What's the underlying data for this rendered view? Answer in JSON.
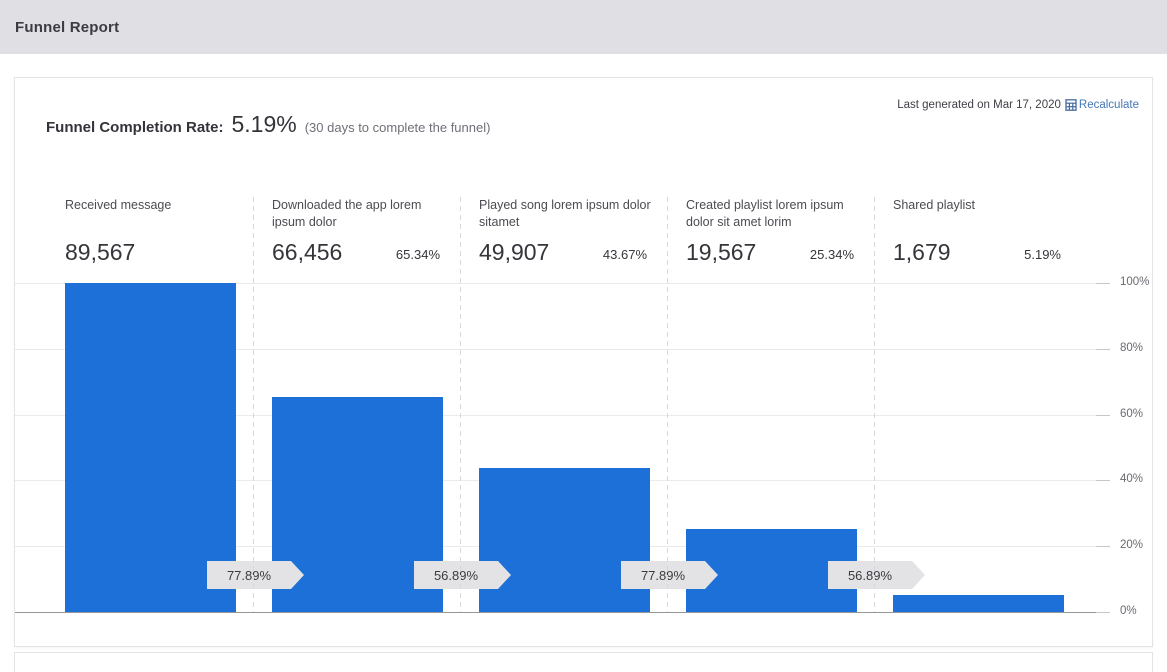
{
  "header": {
    "title": "Funnel Report"
  },
  "card": {
    "completion": {
      "label": "Funnel Completion Rate:",
      "value": "5.19%",
      "note": "(30 days to complete the funnel)"
    },
    "generated": {
      "text": "Last generated on Mar 17, 2020",
      "recalculate_label": "Recalculate",
      "link_color": "#4577b5"
    }
  },
  "chart_data": {
    "type": "bar",
    "title": "Funnel Report",
    "categories": [
      "Received message",
      "Downloaded the app lorem ipsum dolor",
      "Played song lorem ipsum dolor sitamet",
      "Created playlist lorem ipsum dolor sit amet lorim",
      "Shared playlist"
    ],
    "counts": [
      89567,
      66456,
      49907,
      19567,
      1679
    ],
    "count_labels": [
      "89,567",
      "66,456",
      "49,907",
      "19,567",
      "1,679"
    ],
    "percent_of_total": [
      100,
      65.34,
      43.67,
      25.34,
      5.19
    ],
    "percent_labels": [
      "",
      "65.34%",
      "43.67%",
      "25.34%",
      "5.19%"
    ],
    "step_conversion_labels": [
      "77.89%",
      "56.89%",
      "77.89%",
      "56.89%"
    ],
    "y_ticks": [
      "100%",
      "80%",
      "60%",
      "40%",
      "20%",
      "0%"
    ],
    "ylim": [
      0,
      100
    ],
    "grid": true,
    "legend": false,
    "bar_color": "#1c70d8"
  }
}
